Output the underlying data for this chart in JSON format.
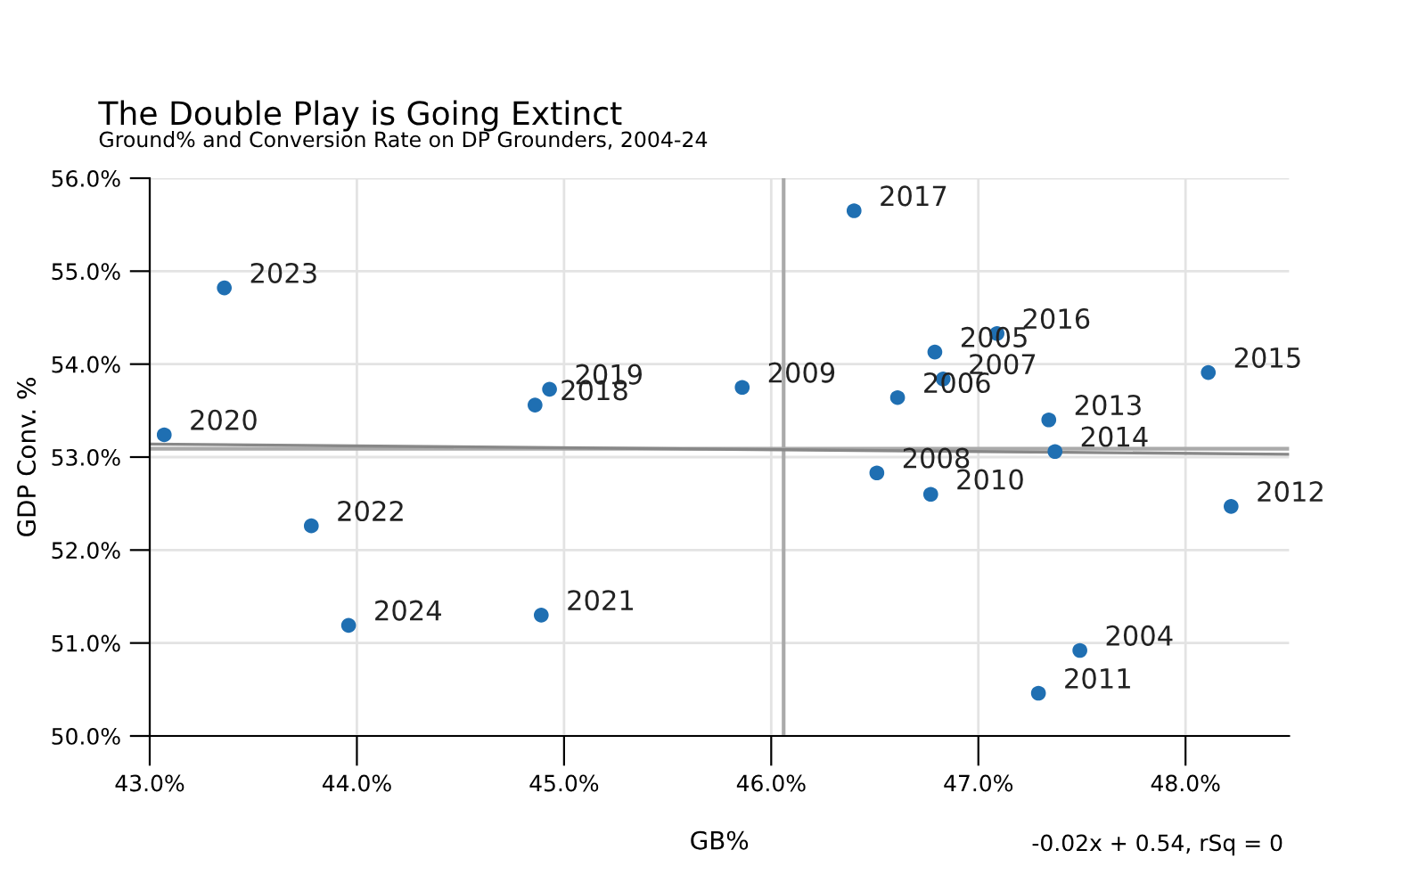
{
  "chart_data": {
    "type": "scatter",
    "title": "The Double Play is Going Extinct",
    "subtitle": "Ground% and Conversion Rate on DP Grounders, 2004-24",
    "xlabel": "GB%",
    "ylabel": "GDP Conv. %",
    "series": [
      {
        "color": "#1f6fb2",
        "marker": "circle",
        "x": [
          47.49,
          46.79,
          46.61,
          46.83,
          46.51,
          45.86,
          46.77,
          47.29,
          48.22,
          47.34,
          47.37,
          48.11,
          47.09,
          46.4,
          44.86,
          44.93,
          43.07,
          44.89,
          43.78,
          43.36,
          43.96
        ],
        "values": [
          50.92,
          54.13,
          53.64,
          53.84,
          52.83,
          53.75,
          52.6,
          50.46,
          52.47,
          53.4,
          53.06,
          53.91,
          54.33,
          55.65,
          53.56,
          53.73,
          53.24,
          51.3,
          52.26,
          54.82,
          51.19
        ]
      },
      {
        "type": "line",
        "color": "#888888",
        "marker": "none",
        "x": [
          43.0,
          48.5
        ],
        "values": [
          53.14,
          53.03
        ]
      }
    ],
    "annotations": [
      {
        "text": "2004",
        "x": 47.49,
        "y": 50.92
      },
      {
        "text": "2005",
        "x": 46.79,
        "y": 54.13
      },
      {
        "text": "2006",
        "x": 46.61,
        "y": 53.64
      },
      {
        "text": "2007",
        "x": 46.83,
        "y": 53.84
      },
      {
        "text": "2008",
        "x": 46.51,
        "y": 52.83
      },
      {
        "text": "2009",
        "x": 45.86,
        "y": 53.75
      },
      {
        "text": "2010",
        "x": 46.77,
        "y": 52.6
      },
      {
        "text": "2011",
        "x": 47.29,
        "y": 50.46
      },
      {
        "text": "2012",
        "x": 48.22,
        "y": 52.47
      },
      {
        "text": "2013",
        "x": 47.34,
        "y": 53.4
      },
      {
        "text": "2014",
        "x": 47.37,
        "y": 53.06
      },
      {
        "text": "2015",
        "x": 48.11,
        "y": 53.91
      },
      {
        "text": "2016",
        "x": 47.09,
        "y": 54.33
      },
      {
        "text": "2017",
        "x": 46.4,
        "y": 55.65
      },
      {
        "text": "2018",
        "x": 44.86,
        "y": 53.56
      },
      {
        "text": "2019",
        "x": 44.93,
        "y": 53.73
      },
      {
        "text": "2020",
        "x": 43.07,
        "y": 53.24
      },
      {
        "text": "2021",
        "x": 44.89,
        "y": 51.3
      },
      {
        "text": "2022",
        "x": 43.78,
        "y": 52.26
      },
      {
        "text": "2023",
        "x": 43.36,
        "y": 54.82
      },
      {
        "text": "2024",
        "x": 43.96,
        "y": 51.19
      },
      "-0.02x + 0.54, rSq = 0"
    ],
    "ref_lines": [
      {
        "axis": "x",
        "value": 46.06,
        "color": "#aaaaaa"
      },
      {
        "axis": "y",
        "value": 53.09,
        "color": "#aaaaaa"
      }
    ],
    "xlim": [
      43.0,
      48.5
    ],
    "ylim": [
      50.0,
      56.0
    ],
    "xticks": [
      {
        "value": 43,
        "label": "43.0%"
      },
      {
        "value": 44,
        "label": "44.0%"
      },
      {
        "value": 45,
        "label": "45.0%"
      },
      {
        "value": 46,
        "label": "46.0%"
      },
      {
        "value": 47,
        "label": "47.0%"
      },
      {
        "value": 48,
        "label": "48.0%"
      }
    ],
    "yticks": [
      {
        "value": 50,
        "label": "50.0%"
      },
      {
        "value": 51,
        "label": "51.0%"
      },
      {
        "value": 52,
        "label": "52.0%"
      },
      {
        "value": 53,
        "label": "53.0%"
      },
      {
        "value": 54,
        "label": "54.0%"
      },
      {
        "value": 55,
        "label": "55.0%"
      },
      {
        "value": 56,
        "label": "56.0%"
      }
    ],
    "grid": true,
    "legend": false
  }
}
